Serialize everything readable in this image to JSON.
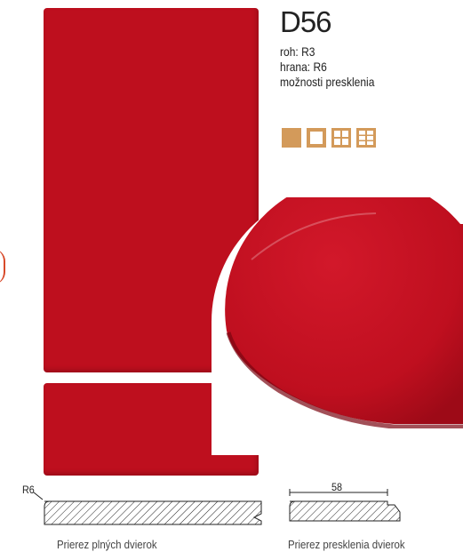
{
  "product": {
    "code": "D56",
    "corner": "roh: R3",
    "edge": "hrana: R6",
    "glazing_options": "možnosti presklenia"
  },
  "glazing_icons": [
    "solid-square-icon",
    "empty-frame-icon",
    "four-pane-icon",
    "six-pane-icon"
  ],
  "colors": {
    "door": "#be0f1e",
    "accent": "#d39a5a"
  },
  "sections": {
    "solid_label": "R6",
    "solid_caption": "Prierez plných dvierok",
    "glazed_dimension": "58",
    "glazed_caption": "Prierez presklenia dvierok"
  }
}
